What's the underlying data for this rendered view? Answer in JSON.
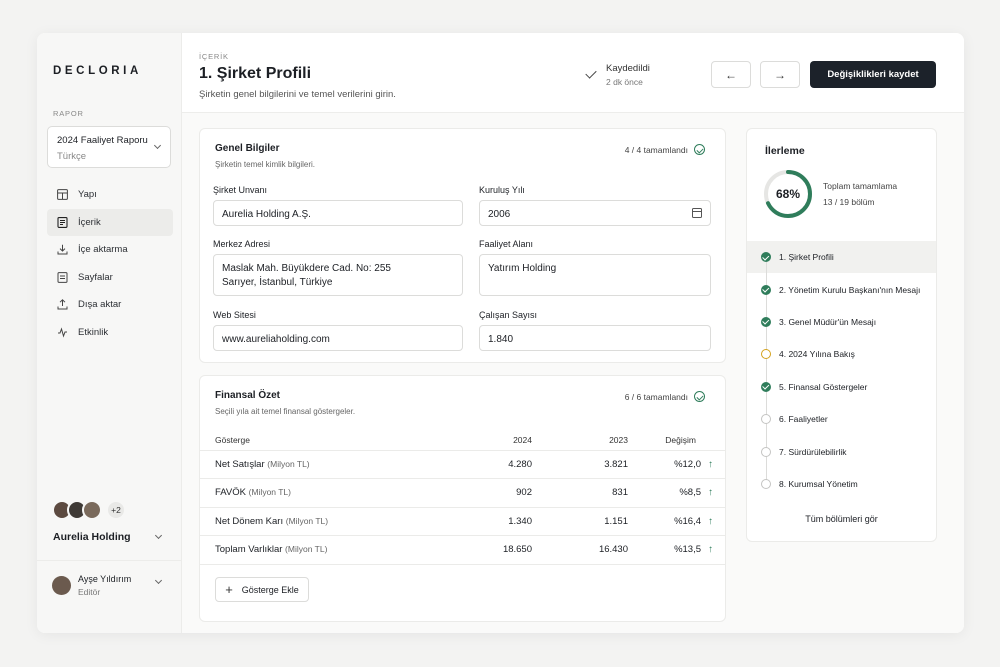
{
  "app": {
    "logo": "DECLORIA"
  },
  "sidebar": {
    "section_label": "RAPOR",
    "report": {
      "name": "2024 Faaliyet Raporu",
      "language": "Türkçe"
    },
    "items": [
      {
        "label": "Yapı",
        "icon": "layout-icon",
        "active": false
      },
      {
        "label": "İçerik",
        "icon": "document-icon",
        "active": true
      },
      {
        "label": "İçe aktarma",
        "icon": "import-icon",
        "active": false
      },
      {
        "label": "Sayfalar",
        "icon": "pages-icon",
        "active": false
      },
      {
        "label": "Dışa aktar",
        "icon": "export-icon",
        "active": false
      },
      {
        "label": "Etkinlik",
        "icon": "activity-icon",
        "active": false
      }
    ],
    "collaborators_extra": "+2",
    "company": "Aurelia Holding",
    "user": {
      "name": "Ayşe Yıldırım",
      "role": "Editör"
    }
  },
  "header": {
    "breadcrumb": "İÇERİK",
    "title": "1. Şirket Profili",
    "subtitle": "Şirketin genel bilgilerini ve temel verilerini girin.",
    "save_status": "Kaydedildi",
    "save_time": "2 dk önce",
    "prev_icon": "←",
    "next_icon": "→",
    "save_label": "Değişiklikleri kaydet"
  },
  "general": {
    "title": "Genel Bilgiler",
    "subtitle": "Şirketin temel kimlik bilgileri.",
    "status": "4 / 4 tamamlandı",
    "fields": {
      "company_name_label": "Şirket Unvanı",
      "company_name": "Aurelia Holding A.Ş.",
      "founded_label": "Kuruluş Yılı",
      "founded": "2006",
      "address_label": "Merkez Adresi",
      "address_line1": "Maslak Mah. Büyükdere Cad. No: 255",
      "address_line2": "Sarıyer, İstanbul, Türkiye",
      "activity_label": "Faaliyet Alanı",
      "activity": "Yatırım Holding",
      "website_label": "Web Sitesi",
      "website": "www.aureliaholding.com",
      "employees_label": "Çalışan Sayısı",
      "employees": "1.840"
    }
  },
  "financial": {
    "title": "Finansal Özet",
    "subtitle": "Seçili yıla ait temel finansal göstergeler.",
    "status": "6 / 6 tamamlandı",
    "columns": [
      "Gösterge",
      "2024",
      "2023",
      "Değişim"
    ],
    "rows": [
      {
        "name": "Net Satışlar",
        "unit": "(Milyon TL)",
        "y2024": "4.280",
        "y2023": "3.821",
        "change": "%12,0"
      },
      {
        "name": "FAVÖK",
        "unit": "(Milyon TL)",
        "y2024": "902",
        "y2023": "831",
        "change": "%8,5"
      },
      {
        "name": "Net Dönem Karı",
        "unit": "(Milyon TL)",
        "y2024": "1.340",
        "y2023": "1.151",
        "change": "%16,4"
      },
      {
        "name": "Toplam Varlıklar",
        "unit": "(Milyon TL)",
        "y2024": "18.650",
        "y2023": "16.430",
        "change": "%13,5"
      }
    ],
    "add_label": "Gösterge Ekle"
  },
  "progress": {
    "title": "İlerleme",
    "percent": "68%",
    "percent_value": 0.68,
    "total_label": "Toplam tamamlama",
    "sections_done": "13 / 19 bölüm",
    "steps": [
      {
        "label": "1. Şirket Profili",
        "state": "done",
        "active": true
      },
      {
        "label": "2. Yönetim Kurulu Başkanı'nın Mesajı",
        "state": "done",
        "active": false
      },
      {
        "label": "3. Genel Müdür'ün Mesajı",
        "state": "done",
        "active": false
      },
      {
        "label": "4. 2024 Yılına Bakış",
        "state": "prog",
        "active": false
      },
      {
        "label": "5. Finansal Göstergeler",
        "state": "done",
        "active": false
      },
      {
        "label": "6. Faaliyetler",
        "state": "todo",
        "active": false
      },
      {
        "label": "7. Sürdürülebilirlik",
        "state": "todo",
        "active": false
      },
      {
        "label": "8. Kurumsal Yönetim",
        "state": "todo",
        "active": false
      }
    ],
    "all_label": "Tüm bölümleri gör"
  },
  "colors": {
    "accent": "#2f7d5b",
    "warning": "#d4a21c",
    "primary": "#1c222a"
  }
}
